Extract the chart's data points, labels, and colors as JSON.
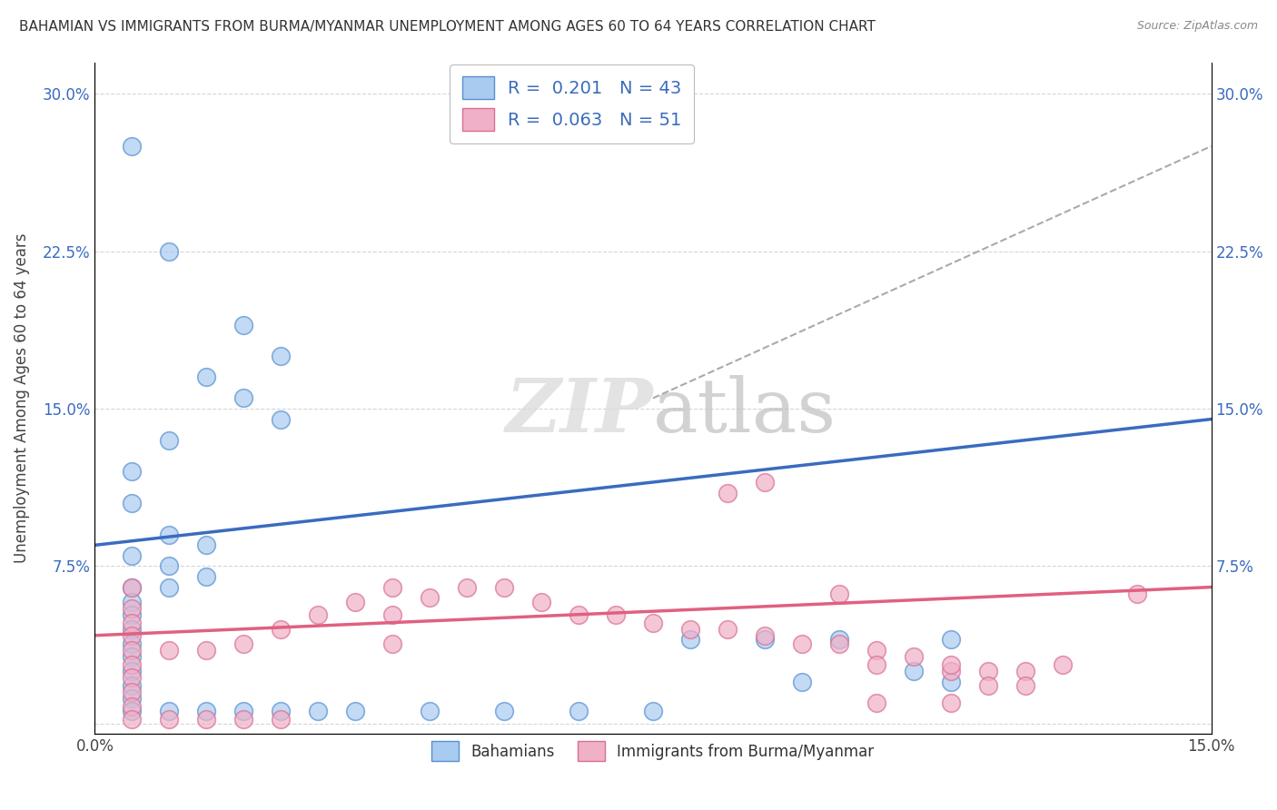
{
  "title": "BAHAMIAN VS IMMIGRANTS FROM BURMA/MYANMAR UNEMPLOYMENT AMONG AGES 60 TO 64 YEARS CORRELATION CHART",
  "source": "Source: ZipAtlas.com",
  "ylabel": "Unemployment Among Ages 60 to 64 years",
  "xlim": [
    0.0,
    0.15
  ],
  "ylim": [
    -0.005,
    0.315
  ],
  "xticks": [
    0.0,
    0.05,
    0.1,
    0.15
  ],
  "xtick_labels": [
    "0.0%",
    "",
    "",
    "15.0%"
  ],
  "yticks": [
    0.0,
    0.075,
    0.15,
    0.225,
    0.3
  ],
  "ytick_labels_left": [
    "",
    "7.5%",
    "15.0%",
    "22.5%",
    "30.0%"
  ],
  "ytick_labels_right": [
    "",
    "7.5%",
    "15.0%",
    "22.5%",
    "30.0%"
  ],
  "blue_scatter": [
    [
      0.005,
      0.275
    ],
    [
      0.01,
      0.225
    ],
    [
      0.02,
      0.19
    ],
    [
      0.025,
      0.175
    ],
    [
      0.015,
      0.165
    ],
    [
      0.02,
      0.155
    ],
    [
      0.025,
      0.145
    ],
    [
      0.01,
      0.135
    ],
    [
      0.005,
      0.12
    ],
    [
      0.005,
      0.105
    ],
    [
      0.01,
      0.09
    ],
    [
      0.015,
      0.085
    ],
    [
      0.005,
      0.08
    ],
    [
      0.01,
      0.075
    ],
    [
      0.015,
      0.07
    ],
    [
      0.005,
      0.065
    ],
    [
      0.01,
      0.065
    ],
    [
      0.005,
      0.058
    ],
    [
      0.005,
      0.052
    ],
    [
      0.005,
      0.045
    ],
    [
      0.005,
      0.038
    ],
    [
      0.005,
      0.032
    ],
    [
      0.005,
      0.025
    ],
    [
      0.005,
      0.018
    ],
    [
      0.005,
      0.012
    ],
    [
      0.005,
      0.006
    ],
    [
      0.01,
      0.006
    ],
    [
      0.015,
      0.006
    ],
    [
      0.02,
      0.006
    ],
    [
      0.025,
      0.006
    ],
    [
      0.03,
      0.006
    ],
    [
      0.035,
      0.006
    ],
    [
      0.045,
      0.006
    ],
    [
      0.055,
      0.006
    ],
    [
      0.065,
      0.006
    ],
    [
      0.075,
      0.006
    ],
    [
      0.08,
      0.04
    ],
    [
      0.09,
      0.04
    ],
    [
      0.1,
      0.04
    ],
    [
      0.095,
      0.02
    ],
    [
      0.11,
      0.025
    ],
    [
      0.115,
      0.02
    ],
    [
      0.115,
      0.04
    ]
  ],
  "pink_scatter": [
    [
      0.005,
      0.065
    ],
    [
      0.005,
      0.055
    ],
    [
      0.005,
      0.048
    ],
    [
      0.005,
      0.042
    ],
    [
      0.005,
      0.035
    ],
    [
      0.005,
      0.028
    ],
    [
      0.005,
      0.022
    ],
    [
      0.005,
      0.015
    ],
    [
      0.005,
      0.008
    ],
    [
      0.005,
      0.002
    ],
    [
      0.01,
      0.002
    ],
    [
      0.015,
      0.002
    ],
    [
      0.02,
      0.002
    ],
    [
      0.025,
      0.002
    ],
    [
      0.01,
      0.035
    ],
    [
      0.015,
      0.035
    ],
    [
      0.02,
      0.038
    ],
    [
      0.025,
      0.045
    ],
    [
      0.03,
      0.052
    ],
    [
      0.035,
      0.058
    ],
    [
      0.04,
      0.065
    ],
    [
      0.04,
      0.052
    ],
    [
      0.04,
      0.038
    ],
    [
      0.045,
      0.06
    ],
    [
      0.05,
      0.065
    ],
    [
      0.055,
      0.065
    ],
    [
      0.06,
      0.058
    ],
    [
      0.065,
      0.052
    ],
    [
      0.07,
      0.052
    ],
    [
      0.075,
      0.048
    ],
    [
      0.08,
      0.045
    ],
    [
      0.085,
      0.045
    ],
    [
      0.085,
      0.11
    ],
    [
      0.09,
      0.042
    ],
    [
      0.095,
      0.038
    ],
    [
      0.1,
      0.038
    ],
    [
      0.105,
      0.035
    ],
    [
      0.11,
      0.032
    ],
    [
      0.115,
      0.025
    ],
    [
      0.12,
      0.025
    ],
    [
      0.125,
      0.025
    ],
    [
      0.12,
      0.018
    ],
    [
      0.125,
      0.018
    ],
    [
      0.105,
      0.028
    ],
    [
      0.115,
      0.028
    ],
    [
      0.13,
      0.028
    ],
    [
      0.14,
      0.062
    ],
    [
      0.09,
      0.115
    ],
    [
      0.1,
      0.062
    ],
    [
      0.105,
      0.01
    ],
    [
      0.115,
      0.01
    ]
  ],
  "blue_line_color": "#3a6bbf",
  "pink_line_color": "#e06080",
  "blue_dot_color": "#7aaee8",
  "pink_dot_color": "#e890a8",
  "grid_color": "#cccccc",
  "background_color": "#ffffff",
  "dashed_line": [
    [
      0.075,
      0.155
    ],
    [
      0.15,
      0.275
    ]
  ],
  "blue_reg": [
    0.0,
    0.085,
    0.15,
    0.145
  ],
  "pink_reg": [
    0.0,
    0.042,
    0.15,
    0.065
  ]
}
